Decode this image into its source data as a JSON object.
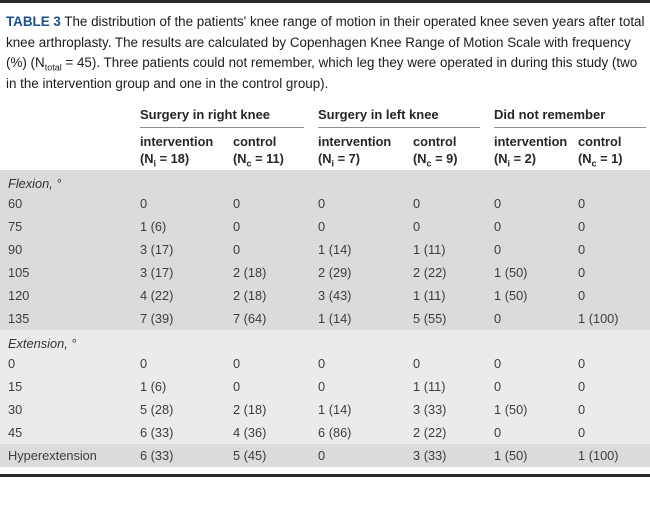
{
  "colors": {
    "table_label_accent": "#1d4f8c",
    "rule": "#2b2b2b",
    "group_underline": "#8e8e8e",
    "section_shade_dark": "#dbdbdb",
    "section_shade_light": "#ebebeb"
  },
  "caption": {
    "label": "TABLE 3",
    "text_before_sub": " The distribution of the patients' knee range of motion in their operated knee seven years after total knee arthroplasty. The results are calculated by Copenhagen Knee Range of Motion Scale with frequency (%) (N",
    "sub": "total",
    "text_after_sub": " = 45). Three patients could not remember, which leg they were operated in during this study (two in the intervention group and one in the control group)."
  },
  "table": {
    "groups": [
      {
        "label": "Surgery in right knee"
      },
      {
        "label": "Surgery in left knee"
      },
      {
        "label": "Did not remember"
      }
    ],
    "subcolumns": [
      {
        "label": "intervention",
        "n_prefix": "(N",
        "n_sub": "i",
        "n_rest": " = 18)"
      },
      {
        "label": "control",
        "n_prefix": "(N",
        "n_sub": "c",
        "n_rest": " = 11)"
      },
      {
        "label": "intervention",
        "n_prefix": "(N",
        "n_sub": "i",
        "n_rest": " = 7)"
      },
      {
        "label": "control",
        "n_prefix": "(N",
        "n_sub": "c",
        "n_rest": " = 9)"
      },
      {
        "label": "intervention",
        "n_prefix": "(N",
        "n_sub": "i",
        "n_rest": " = 2)"
      },
      {
        "label": "control",
        "n_prefix": "(N",
        "n_sub": "c",
        "n_rest": " = 1)"
      }
    ],
    "sections": [
      {
        "title": "Flexion, °",
        "shade": "dark",
        "rows": [
          {
            "label": "60",
            "values": [
              "0",
              "0",
              "0",
              "0",
              "0",
              "0"
            ]
          },
          {
            "label": "75",
            "values": [
              "1 (6)",
              "0",
              "0",
              "0",
              "0",
              "0"
            ]
          },
          {
            "label": "90",
            "values": [
              "3 (17)",
              "0",
              "1 (14)",
              "1 (11)",
              "0",
              "0"
            ]
          },
          {
            "label": "105",
            "values": [
              "3 (17)",
              "2 (18)",
              "2 (29)",
              "2 (22)",
              "1 (50)",
              "0"
            ]
          },
          {
            "label": "120",
            "values": [
              "4 (22)",
              "2 (18)",
              "3 (43)",
              "1 (11)",
              "1 (50)",
              "0"
            ]
          },
          {
            "label": "135",
            "values": [
              "7 (39)",
              "7 (64)",
              "1 (14)",
              "5 (55)",
              "0",
              "1 (100)"
            ]
          }
        ]
      },
      {
        "title": "Extension, °",
        "shade": "light",
        "rows": [
          {
            "label": "0",
            "values": [
              "0",
              "0",
              "0",
              "0",
              "0",
              "0"
            ]
          },
          {
            "label": "15",
            "values": [
              "1 (6)",
              "0",
              "0",
              "1 (11)",
              "0",
              "0"
            ]
          },
          {
            "label": "30",
            "values": [
              "5 (28)",
              "2 (18)",
              "1 (14)",
              "3 (33)",
              "1 (50)",
              "0"
            ]
          },
          {
            "label": "45",
            "values": [
              "6 (33)",
              "4 (36)",
              "6 (86)",
              "2 (22)",
              "0",
              "0"
            ]
          }
        ]
      },
      {
        "title": "",
        "shade": "dark",
        "rows": [
          {
            "label": "Hyperextension",
            "values": [
              "6 (33)",
              "5 (45)",
              "0",
              "3 (33)",
              "1 (50)",
              "1 (100)"
            ]
          }
        ]
      }
    ]
  }
}
